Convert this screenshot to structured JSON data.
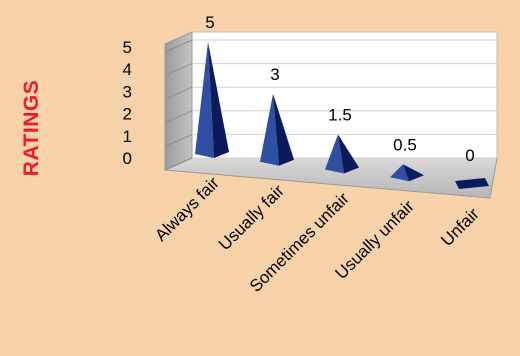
{
  "chart_data": {
    "type": "bar",
    "style": "3d-pyramid",
    "categories": [
      "Always fair",
      "Usually fair",
      "Sometimes unfair",
      "Usually unfair",
      "Unfair"
    ],
    "values": [
      5,
      3,
      1.5,
      0.5,
      0
    ],
    "data_labels": [
      "5",
      "3",
      "1.5",
      "0.5",
      "0"
    ],
    "title": "",
    "xlabel": "",
    "ylabel": "RATINGS",
    "ylim": [
      0,
      5
    ],
    "yticks": [
      "0",
      "1",
      "2",
      "3",
      "4",
      "5"
    ],
    "grid": true,
    "legend": "none",
    "colors": {
      "background": "#f8d2a8",
      "plot_wall": "#ffffff",
      "side_wall": "#a6a6a6",
      "floor": "#c8c8c8",
      "bar_light": "#2f4fa3",
      "bar_dark": "#0a1a5c",
      "ylabel": "#ee1c24"
    }
  }
}
